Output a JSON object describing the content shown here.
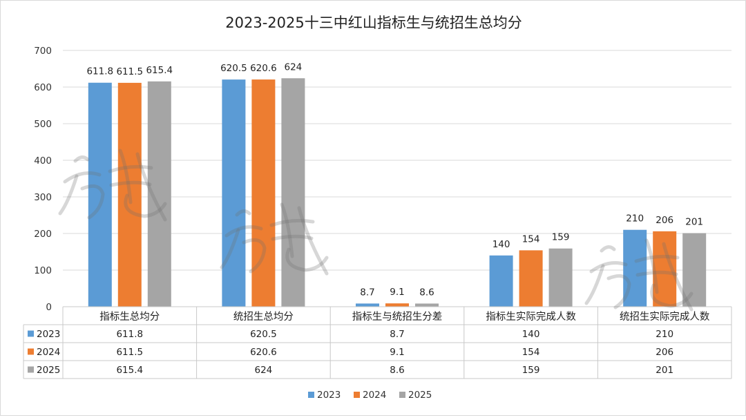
{
  "chart_data": {
    "type": "bar",
    "title": "2023-2025十三中红山指标生与统招生总均分",
    "categories": [
      "指标生总均分",
      "统招生总均分",
      "指标生与统招生分差",
      "指标生实际完成人数",
      "统招生实际完成人数"
    ],
    "series": [
      {
        "name": "2023",
        "color": "#5b9bd5",
        "values": [
          611.8,
          620.5,
          8.7,
          140,
          210
        ],
        "labels": [
          "611.8",
          "620.5",
          "8.7",
          "140",
          "210"
        ]
      },
      {
        "name": "2024",
        "color": "#ed7d31",
        "values": [
          611.5,
          620.6,
          9.1,
          154,
          206
        ],
        "labels": [
          "611.5",
          "620.6",
          "9.1",
          "154",
          "206"
        ]
      },
      {
        "name": "2025",
        "color": "#a5a5a5",
        "values": [
          615.4,
          624,
          8.6,
          159,
          201
        ],
        "labels": [
          "615.4",
          "624",
          "8.6",
          "159",
          "201"
        ]
      }
    ],
    "ylim": [
      0,
      700
    ],
    "yticks": [
      0,
      100,
      200,
      300,
      400,
      500,
      600,
      700
    ],
    "grid": true,
    "legend": "bottom",
    "data_table": true
  },
  "watermark": "watermark-signature"
}
